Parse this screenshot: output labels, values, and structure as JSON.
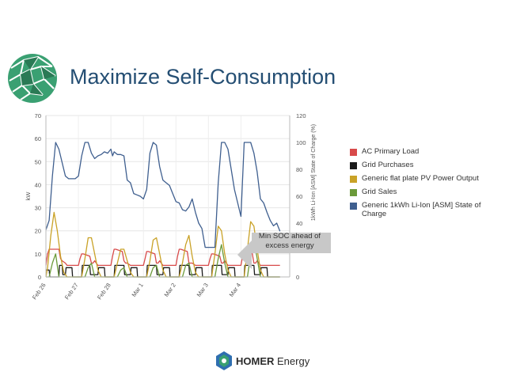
{
  "slide": {
    "title": "Maximize Self-Consumption"
  },
  "colors": {
    "title": "#244e73",
    "logo_green": "#3aa072",
    "logo_dark": "#2a7a55",
    "footer_blue": "#2f6fb0"
  },
  "footer": {
    "brand_bold": "HOMER",
    "brand_rest": " Energy"
  },
  "callout": {
    "line1": "Min SOC ahead of",
    "line2": "excess energy"
  },
  "chart_data": {
    "type": "line",
    "y_left": {
      "label": "kW",
      "range": [
        0,
        70
      ],
      "ticks": [
        "0",
        "10",
        "20",
        "30",
        "40",
        "50",
        "60",
        "70"
      ]
    },
    "y_right": {
      "label": "1kWh Li-Ion [ASM] State of Charge (%)",
      "range": [
        0,
        120
      ],
      "ticks": [
        "0",
        "20",
        "40",
        "60",
        "80",
        "100",
        "120"
      ]
    },
    "x": {
      "range": [
        0,
        7.5
      ],
      "ticks": [
        {
          "label": "Feb 26",
          "value": 0
        },
        {
          "label": "Feb 27",
          "value": 1
        },
        {
          "label": "Feb 28",
          "value": 2
        },
        {
          "label": "Mar 1",
          "value": 3
        },
        {
          "label": "Mar 2",
          "value": 4
        },
        {
          "label": "Mar 3",
          "value": 5
        },
        {
          "label": "Mar 4",
          "value": 6
        }
      ]
    },
    "grid": true,
    "series": [
      {
        "name": "AC Primary Load",
        "color": "#d84a4a",
        "axis": "left",
        "x": [
          0,
          0.05,
          0.1,
          0.15,
          0.4,
          0.45,
          0.5,
          0.6,
          0.65,
          0.75,
          1.0,
          1.05,
          1.1,
          1.15,
          1.35,
          1.4,
          1.45,
          1.5,
          1.6,
          1.65,
          1.75,
          2.0,
          2.05,
          2.1,
          2.15,
          2.35,
          2.4,
          2.45,
          2.5,
          2.6,
          2.65,
          2.75,
          3.0,
          3.05,
          3.1,
          3.15,
          3.35,
          3.4,
          3.45,
          3.5,
          3.6,
          3.65,
          3.75,
          4.0,
          4.05,
          4.1,
          4.15,
          4.35,
          4.4,
          4.45,
          4.5,
          4.6,
          4.65,
          4.75,
          5.0,
          5.05,
          5.1,
          5.15,
          5.35,
          5.4,
          5.45,
          5.5,
          5.6,
          5.65,
          5.75,
          6.0,
          6.05,
          6.1,
          6.15,
          6.35,
          6.4,
          6.45,
          6.5,
          6.6,
          6.65,
          6.75,
          7.2
        ],
        "y": [
          5,
          10,
          12,
          12,
          12,
          8,
          7,
          6,
          5,
          5,
          5,
          8,
          10,
          10,
          9,
          6,
          6,
          7,
          5,
          5,
          5,
          5,
          9,
          12,
          12,
          11,
          7,
          6,
          6,
          5,
          5,
          5,
          5,
          8,
          11,
          11,
          10,
          6,
          6,
          7,
          5,
          5,
          5,
          5,
          9,
          12,
          12,
          11,
          6,
          6,
          6,
          5,
          5,
          5,
          5,
          8,
          10,
          10,
          9,
          6,
          6,
          7,
          5,
          5,
          5,
          5,
          9,
          11,
          11,
          10,
          6,
          6,
          7,
          5,
          5,
          5,
          5
        ]
      },
      {
        "name": "Grid Purchases",
        "color": "#1a1a1a",
        "axis": "left",
        "x": [
          0,
          0.1,
          0.12,
          0.4,
          0.42,
          0.5,
          0.52,
          0.6,
          0.62,
          0.8,
          0.82,
          1.1,
          1.12,
          1.35,
          1.37,
          1.6,
          1.62,
          1.8,
          1.82,
          2.1,
          2.12,
          2.4,
          2.42,
          2.6,
          2.62,
          2.8,
          2.82,
          3.1,
          3.12,
          3.4,
          3.42,
          3.6,
          3.62,
          3.8,
          3.82,
          4.1,
          4.12,
          4.4,
          4.42,
          4.6,
          4.62,
          4.8,
          4.82,
          5.1,
          5.12,
          5.4,
          5.42,
          5.6,
          5.62,
          5.8,
          5.82,
          6.1,
          6.12,
          6.4,
          6.42,
          6.6,
          6.62,
          6.8,
          6.82,
          7.2
        ],
        "y": [
          3,
          3,
          0,
          0,
          5,
          5,
          1,
          1,
          4,
          4,
          0,
          0,
          5,
          5,
          1,
          1,
          4,
          4,
          0,
          0,
          5,
          5,
          1,
          1,
          4,
          4,
          0,
          0,
          5,
          5,
          1,
          1,
          4,
          4,
          0,
          0,
          5,
          5,
          1,
          1,
          4,
          4,
          0,
          0,
          5,
          5,
          1,
          1,
          4,
          4,
          0,
          0,
          5,
          5,
          1,
          1,
          4,
          4,
          0,
          0
        ]
      },
      {
        "name": "Generic flat plate PV Power Output",
        "color": "#c9a227",
        "axis": "left",
        "x": [
          0,
          0.05,
          0.15,
          0.25,
          0.35,
          0.45,
          0.55,
          0.65,
          1.1,
          1.2,
          1.3,
          1.4,
          1.5,
          1.6,
          1.7,
          2.1,
          2.2,
          2.3,
          2.4,
          2.5,
          2.6,
          2.7,
          3.1,
          3.2,
          3.3,
          3.4,
          3.5,
          3.6,
          3.7,
          4.1,
          4.2,
          4.3,
          4.4,
          4.5,
          4.6,
          4.7,
          5.1,
          5.2,
          5.3,
          5.4,
          5.5,
          5.6,
          5.7,
          6.1,
          6.2,
          6.3,
          6.4,
          6.5,
          6.6,
          6.7,
          7.2
        ],
        "y": [
          0,
          4,
          18,
          28,
          20,
          9,
          2,
          0,
          0,
          8,
          17,
          17,
          10,
          3,
          0,
          0,
          6,
          12,
          12,
          7,
          2,
          0,
          0,
          7,
          16,
          17,
          10,
          3,
          0,
          0,
          6,
          14,
          18,
          9,
          2,
          0,
          0,
          10,
          22,
          20,
          10,
          3,
          0,
          0,
          12,
          24,
          22,
          12,
          3,
          0,
          0
        ]
      },
      {
        "name": "Grid Sales",
        "color": "#6b9a3a",
        "axis": "left",
        "x": [
          0,
          0.1,
          0.2,
          0.3,
          0.4,
          1.2,
          1.3,
          1.4,
          1.5,
          2.2,
          2.3,
          2.4,
          2.5,
          3.2,
          3.3,
          3.4,
          3.5,
          4.2,
          4.3,
          4.4,
          4.5,
          5.2,
          5.3,
          5.4,
          5.5,
          5.6,
          6.2,
          6.3,
          6.4,
          6.5,
          6.6,
          7.2
        ],
        "y": [
          0,
          0,
          6,
          10,
          0,
          0,
          4,
          6,
          0,
          0,
          3,
          4,
          0,
          0,
          4,
          5,
          0,
          0,
          5,
          6,
          0,
          0,
          8,
          14,
          6,
          0,
          0,
          10,
          16,
          8,
          0,
          0
        ]
      },
      {
        "name": "Generic 1kWh Li-Ion [ASM] State of Charge",
        "color": "#3f5f8f",
        "axis": "right",
        "x": [
          0,
          0.1,
          0.2,
          0.3,
          0.4,
          0.5,
          0.6,
          0.7,
          0.8,
          0.9,
          1.0,
          1.1,
          1.2,
          1.3,
          1.4,
          1.5,
          1.6,
          1.7,
          1.8,
          1.9,
          2.0,
          2.05,
          2.1,
          2.2,
          2.3,
          2.4,
          2.5,
          2.6,
          2.7,
          2.8,
          2.9,
          3.0,
          3.1,
          3.2,
          3.3,
          3.4,
          3.5,
          3.6,
          3.7,
          3.8,
          3.9,
          4.0,
          4.1,
          4.2,
          4.3,
          4.4,
          4.5,
          4.6,
          4.7,
          4.8,
          4.9,
          5.0,
          5.1,
          5.2,
          5.3,
          5.4,
          5.5,
          5.6,
          5.7,
          5.8,
          5.9,
          6.0,
          6.1,
          6.2,
          6.3,
          6.4,
          6.5,
          6.6,
          6.7,
          6.8,
          6.9,
          7.0,
          7.1,
          7.2
        ],
        "y": [
          35,
          42,
          75,
          100,
          95,
          85,
          75,
          73,
          73,
          73,
          75,
          90,
          100,
          100,
          92,
          88,
          90,
          91,
          93,
          92,
          95,
          90,
          93,
          91,
          91,
          90,
          72,
          70,
          62,
          61,
          60,
          58,
          65,
          92,
          100,
          98,
          82,
          72,
          70,
          68,
          62,
          56,
          55,
          50,
          49,
          52,
          58,
          48,
          40,
          36,
          22,
          22,
          22,
          22,
          70,
          100,
          100,
          95,
          80,
          65,
          55,
          45,
          100,
          100,
          100,
          92,
          78,
          58,
          55,
          48,
          42,
          38,
          40,
          34
        ]
      }
    ]
  },
  "legend": [
    {
      "label": "AC Primary Load",
      "color": "#d84a4a"
    },
    {
      "label": "Grid Purchases",
      "color": "#1a1a1a"
    },
    {
      "label": "Generic flat plate PV Power Output",
      "color": "#c9a227"
    },
    {
      "label": "Grid Sales",
      "color": "#6b9a3a"
    },
    {
      "label": "Generic 1kWh Li-Ion [ASM] State of Charge",
      "color": "#3f5f8f"
    }
  ]
}
